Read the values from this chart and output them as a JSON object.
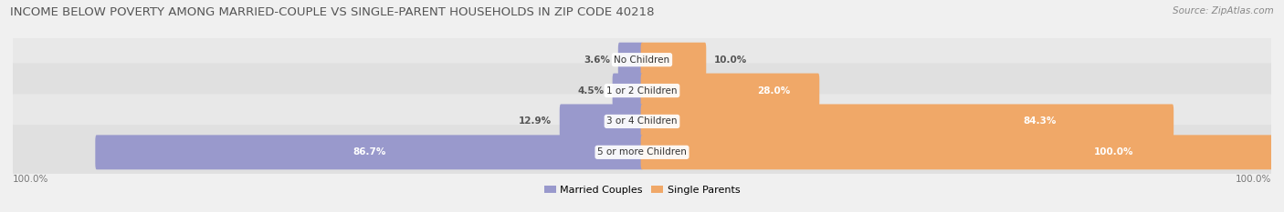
{
  "title": "INCOME BELOW POVERTY AMONG MARRIED-COUPLE VS SINGLE-PARENT HOUSEHOLDS IN ZIP CODE 40218",
  "source": "Source: ZipAtlas.com",
  "categories": [
    "No Children",
    "1 or 2 Children",
    "3 or 4 Children",
    "5 or more Children"
  ],
  "married_values": [
    3.6,
    4.5,
    12.9,
    86.7
  ],
  "single_values": [
    10.0,
    28.0,
    84.3,
    100.0
  ],
  "married_color": "#9999cc",
  "single_color": "#f0a868",
  "axis_label_left": "100.0%",
  "axis_label_right": "100.0%",
  "title_fontsize": 9.5,
  "source_fontsize": 7.5,
  "bar_height": 0.72,
  "fig_bg_color": "#f0f0f0",
  "row_bg_even": "#e8e8e8",
  "row_bg_odd": "#e0e0e0",
  "label_fontsize": 7.5,
  "value_fontsize": 7.5,
  "legend_fontsize": 8
}
